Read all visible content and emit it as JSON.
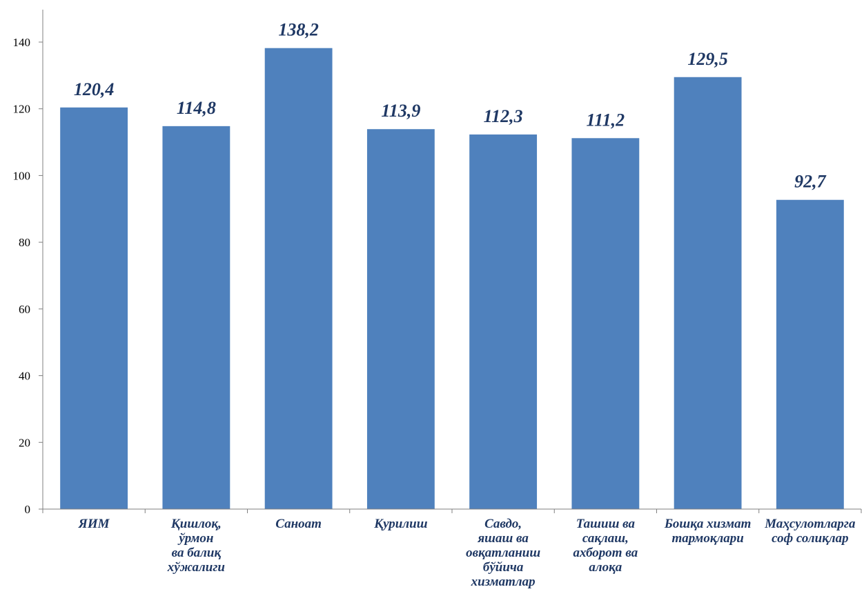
{
  "chart_data": {
    "type": "bar",
    "categories": [
      [
        "ЯИМ"
      ],
      [
        "Қишлоқ,",
        "ўрмон",
        "ва балиқ",
        "хўжалиги"
      ],
      [
        "Саноат"
      ],
      [
        "Қурилиш"
      ],
      [
        "Савдо,",
        "яшаш ва",
        "овқатланиш",
        "бўйича",
        "хизматлар"
      ],
      [
        "Ташиш ва",
        "сақлаш,",
        "ахборот ва",
        "алоқа"
      ],
      [
        "Бошқа хизмат",
        "тармоқлари"
      ],
      [
        "Маҳсулотларга",
        "соф солиқлар"
      ]
    ],
    "values": [
      120.4,
      114.8,
      138.2,
      113.9,
      112.3,
      111.2,
      129.5,
      92.7
    ],
    "value_labels": [
      "120,4",
      "114,8",
      "138,2",
      "113,9",
      "112,3",
      "111,2",
      "129,5",
      "92,7"
    ],
    "ylim": [
      0,
      140
    ],
    "yticks": [
      0,
      20,
      40,
      60,
      80,
      100,
      120,
      140
    ],
    "grid": false,
    "bar_color": "#4f81bd",
    "label_color": "#1f3864",
    "title": "",
    "xlabel": "",
    "ylabel": ""
  }
}
